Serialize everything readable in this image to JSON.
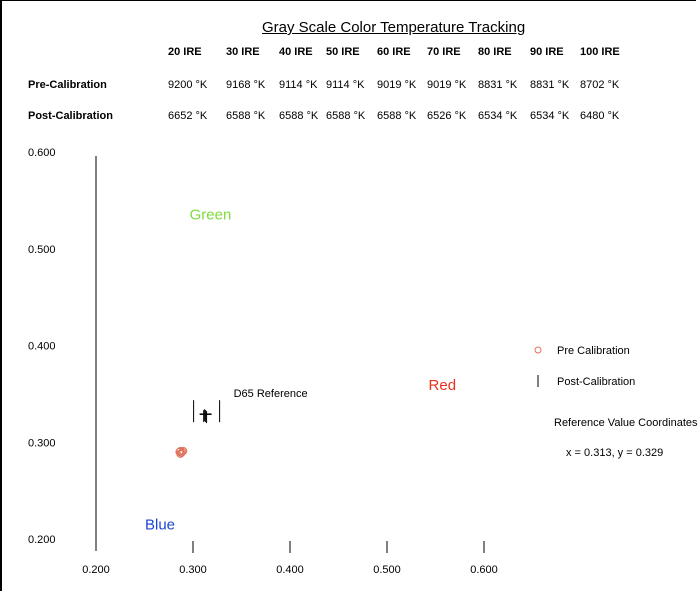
{
  "table": {
    "title": "Gray Scale Color Temperature Tracking",
    "columns": [
      "20 IRE",
      "30 IRE",
      "40 IRE",
      "50 IRE",
      "60 IRE",
      "70 IRE",
      "80 IRE",
      "90 IRE",
      "100 IRE"
    ],
    "rows": [
      {
        "label": "Pre-Calibration",
        "values": [
          "9200 °K",
          "9168 °K",
          "9114 °K",
          "9114 °K",
          "9019 °K",
          "9019 °K",
          "8831 °K",
          "8831 °K",
          "8702 °K"
        ]
      },
      {
        "label": "Post-Calibration",
        "values": [
          "6652 °K",
          "6588 °K",
          "6588 °K",
          "6588 °K",
          "6588 °K",
          "6526 °K",
          "6534 °K",
          "6534 °K",
          "6480 °K"
        ]
      }
    ]
  },
  "chart_data": {
    "type": "scatter",
    "xlim": [
      0.2,
      0.6
    ],
    "ylim": [
      0.2,
      0.6
    ],
    "x_ticks": [
      "0.200",
      "0.300",
      "0.400",
      "0.500",
      "0.600"
    ],
    "y_ticks": [
      "0.200",
      "0.300",
      "0.400",
      "0.500",
      "0.600"
    ],
    "region_labels": [
      {
        "text": "Green",
        "x": 0.318,
        "y": 0.53,
        "color": "#7ddc3c"
      },
      {
        "text": "Red",
        "x": 0.557,
        "y": 0.354,
        "color": "#e8321e"
      },
      {
        "text": "Blue",
        "x": 0.266,
        "y": 0.21,
        "color": "#1e46d2"
      }
    ],
    "series": [
      {
        "name": "Pre Calibration",
        "marker": "circle",
        "color": "#e0705a",
        "points": [
          [
            0.286,
            0.29
          ],
          [
            0.287,
            0.291
          ],
          [
            0.288,
            0.289
          ],
          [
            0.289,
            0.29
          ],
          [
            0.287,
            0.288
          ],
          [
            0.29,
            0.291
          ]
        ]
      },
      {
        "name": "Post-Calibration",
        "marker": "vline",
        "color": "#000000",
        "points": [
          [
            0.311,
            0.327
          ],
          [
            0.313,
            0.327
          ],
          [
            0.312,
            0.328
          ],
          [
            0.314,
            0.326
          ]
        ]
      }
    ],
    "reference": {
      "label": "D65 Reference",
      "x": 0.313,
      "y": 0.329
    },
    "annotation": {
      "title": "Reference Value Coordinates",
      "value": "x = 0.313, y = 0.329"
    },
    "legend": "right"
  }
}
